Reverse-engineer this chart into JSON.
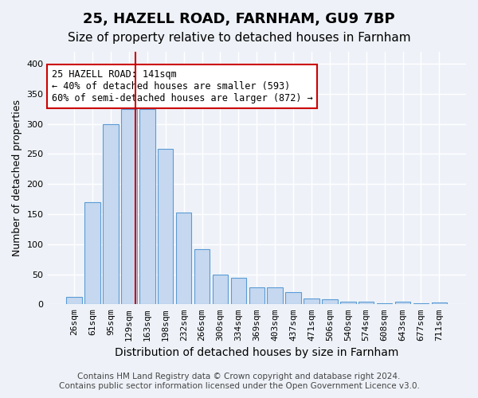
{
  "title1": "25, HAZELL ROAD, FARNHAM, GU9 7BP",
  "title2": "Size of property relative to detached houses in Farnham",
  "xlabel": "Distribution of detached houses by size in Farnham",
  "ylabel": "Number of detached properties",
  "footer1": "Contains HM Land Registry data © Crown copyright and database right 2024.",
  "footer2": "Contains public sector information licensed under the Open Government Licence v3.0.",
  "annotation_line1": "25 HAZELL ROAD: 141sqm",
  "annotation_line2": "← 40% of detached houses are smaller (593)",
  "annotation_line3": "60% of semi-detached houses are larger (872) →",
  "bar_labels": [
    "26sqm",
    "61sqm",
    "95sqm",
    "129sqm",
    "163sqm",
    "198sqm",
    "232sqm",
    "266sqm",
    "300sqm",
    "334sqm",
    "369sqm",
    "403sqm",
    "437sqm",
    "471sqm",
    "506sqm",
    "540sqm",
    "574sqm",
    "608sqm",
    "643sqm",
    "677sqm",
    "711sqm"
  ],
  "bar_heights": [
    12,
    170,
    300,
    325,
    325,
    258,
    153,
    92,
    50,
    44,
    28,
    28,
    20,
    10,
    9,
    5,
    4,
    2,
    4,
    2,
    3
  ],
  "bar_color": "#c5d8f0",
  "bar_edge_color": "#5b9bd5",
  "red_line_index": 3,
  "property_sqm": 141,
  "ylim": [
    0,
    420
  ],
  "yticks": [
    0,
    50,
    100,
    150,
    200,
    250,
    300,
    350,
    400
  ],
  "bg_color": "#eef2f8",
  "plot_bg_color": "#eef2f8",
  "grid_color": "#ffffff",
  "annotation_box_color": "#ffffff",
  "annotation_box_edge": "#cc0000",
  "red_line_color": "#cc0000",
  "title1_fontsize": 13,
  "title2_fontsize": 11,
  "xlabel_fontsize": 10,
  "ylabel_fontsize": 9,
  "tick_fontsize": 8,
  "annotation_fontsize": 8.5,
  "footer_fontsize": 7.5
}
